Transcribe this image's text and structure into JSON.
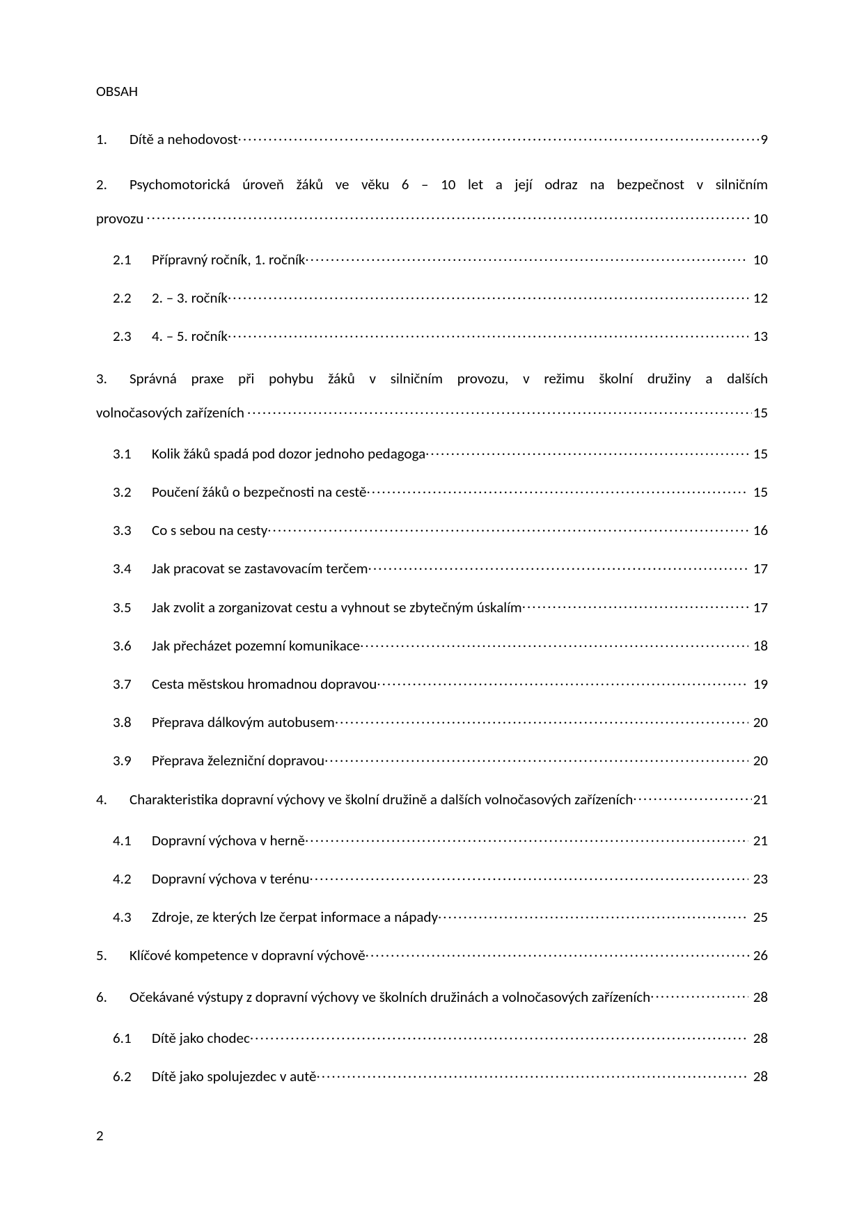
{
  "heading": "OBSAH",
  "pageNumber": "2",
  "toc": {
    "e1": {
      "num": "1.",
      "text": "Dítě a nehodovost",
      "page": "9"
    },
    "e2": {
      "num": "2.",
      "line1": "Psychomotorická úroveň žáků ve věku 6 – 10 let a její odraz na bezpečnost v silničním",
      "cont": "provozu",
      "page": "10"
    },
    "e2_1": {
      "num": "2.1",
      "text": "Přípravný ročník, 1. ročník",
      "page": "10"
    },
    "e2_2": {
      "num": "2.2",
      "text": "2. – 3. ročník",
      "page": "12"
    },
    "e2_3": {
      "num": "2.3",
      "text": "4. – 5. ročník",
      "page": "13"
    },
    "e3": {
      "num": "3.",
      "line1": "Správná praxe při pohybu žáků v silničním provozu, v režimu školní družiny a dalších",
      "cont": "volnočasových zařízeních",
      "page": "15"
    },
    "e3_1": {
      "num": "3.1",
      "text": "Kolik žáků spadá pod dozor jednoho pedagoga",
      "page": "15"
    },
    "e3_2": {
      "num": "3.2",
      "text": "Poučení žáků o bezpečnosti na cestě",
      "page": "15"
    },
    "e3_3": {
      "num": "3.3",
      "text": "Co s sebou na cesty",
      "page": "16"
    },
    "e3_4": {
      "num": "3.4",
      "text": "Jak pracovat se zastavovacím terčem",
      "page": "17"
    },
    "e3_5": {
      "num": "3.5",
      "text": "Jak zvolit a zorganizovat cestu a vyhnout se zbytečným úskalím",
      "page": "17"
    },
    "e3_6": {
      "num": "3.6",
      "text": "Jak přecházet pozemní komunikace",
      "page": "18"
    },
    "e3_7": {
      "num": "3.7",
      "text": "Cesta městskou hromadnou dopravou",
      "page": "19"
    },
    "e3_8": {
      "num": "3.8",
      "text": "Přeprava dálkovým autobusem",
      "page": "20"
    },
    "e3_9": {
      "num": "3.9",
      "text": "Přeprava železniční dopravou",
      "page": "20"
    },
    "e4": {
      "num": "4.",
      "text": "Charakteristika dopravní výchovy ve školní družině  a dalších volnočasových zařízeních",
      "page": "21"
    },
    "e4_1": {
      "num": "4.1",
      "text": "Dopravní výchova v herně",
      "page": "21"
    },
    "e4_2": {
      "num": "4.2",
      "text": "Dopravní výchova v terénu",
      "page": "23"
    },
    "e4_3": {
      "num": "4.3",
      "text": "Zdroje, ze kterých lze čerpat informace a nápady",
      "page": "25"
    },
    "e5": {
      "num": "5.",
      "text": "Klíčové kompetence v dopravní výchově",
      "page": "26"
    },
    "e6": {
      "num": "6.",
      "text": "Očekávané výstupy z dopravní výchovy ve školních družinách a volnočasových zařízeních",
      "page": "28"
    },
    "e6_1": {
      "num": "6.1",
      "text": "Dítě jako chodec",
      "page": "28"
    },
    "e6_2": {
      "num": "6.2",
      "text": "Dítě jako spolujezdec v autě",
      "page": "28"
    }
  }
}
